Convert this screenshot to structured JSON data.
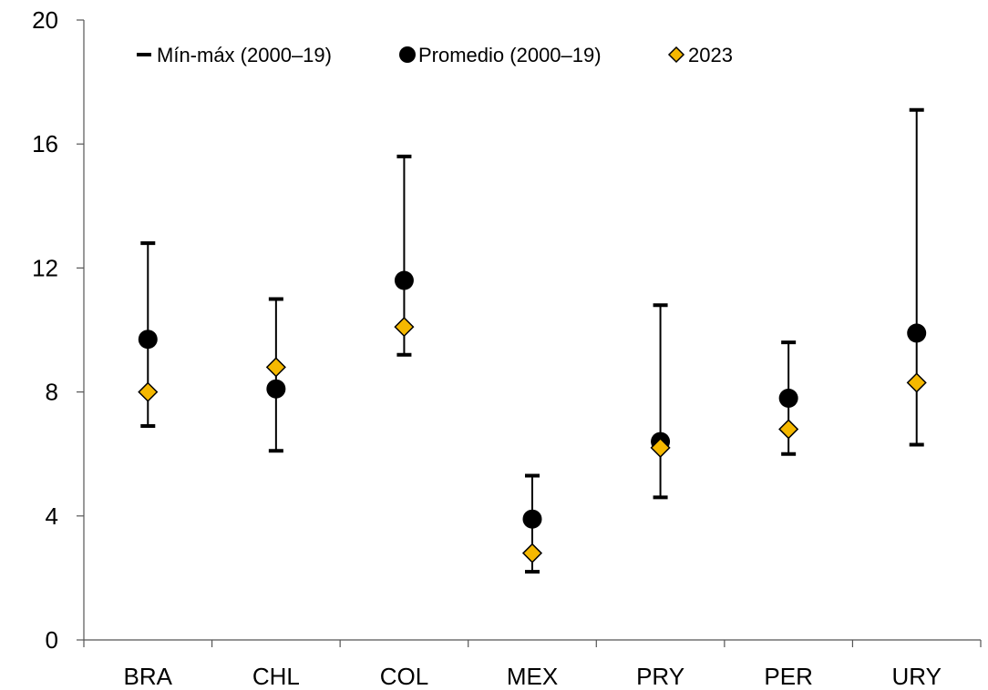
{
  "chart_data": {
    "type": "scatter",
    "categories": [
      "BRA",
      "CHL",
      "COL",
      "MEX",
      "PRY",
      "PER",
      "URY"
    ],
    "ylim": [
      0,
      20
    ],
    "yticks": [
      "0",
      "4",
      "8",
      "12",
      "16",
      "20"
    ],
    "grid": false,
    "legend_position": "top-left",
    "legend": {
      "range_label": "Mín-máx (2000–19)",
      "mean_label": "Promedio (2000–19)",
      "latest_label": "2023"
    },
    "series": [
      {
        "name": "Mín-máx (2000–19)",
        "kind": "range",
        "min": [
          6.9,
          6.1,
          9.2,
          2.2,
          4.6,
          6.0,
          6.3
        ],
        "max": [
          12.8,
          11.0,
          15.6,
          5.3,
          10.8,
          9.6,
          17.1
        ]
      },
      {
        "name": "Promedio (2000–19)",
        "kind": "point",
        "values": [
          9.7,
          8.1,
          11.6,
          3.9,
          6.4,
          7.8,
          9.9
        ]
      },
      {
        "name": "2023",
        "kind": "point",
        "values": [
          8.0,
          8.8,
          10.1,
          2.8,
          6.2,
          6.8,
          8.3
        ]
      }
    ],
    "colors": {
      "range": "#000000",
      "mean": "#000000",
      "latest_fill": "#F5B800",
      "latest_stroke": "#000000"
    }
  }
}
